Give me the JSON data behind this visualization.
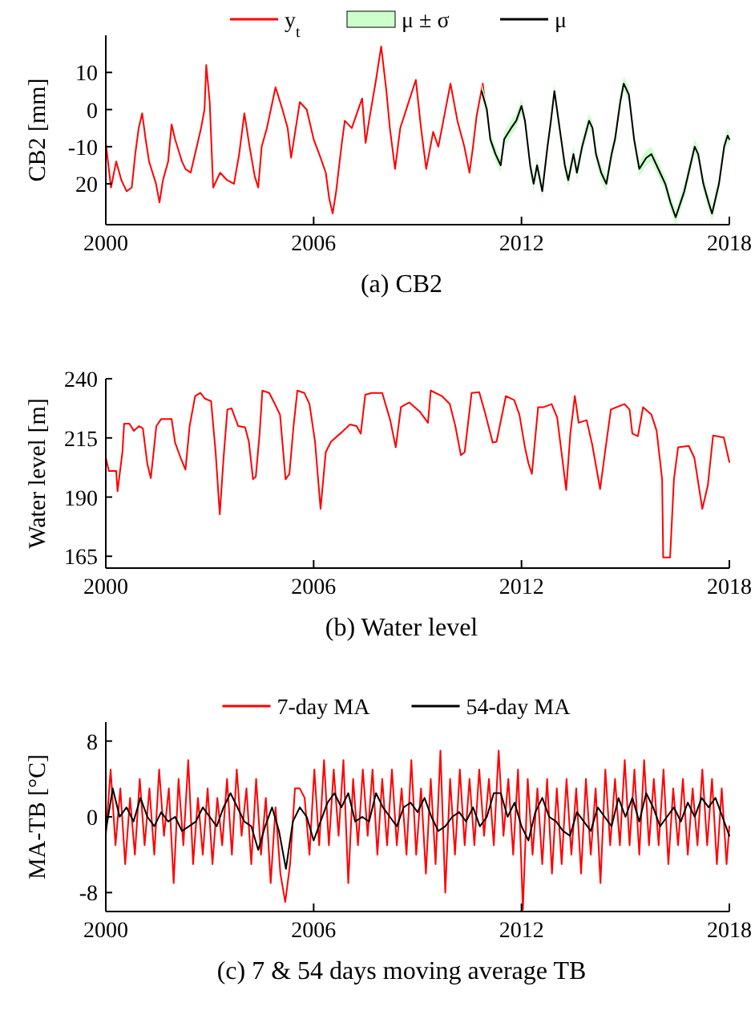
{
  "chart_data": [
    {
      "type": "line",
      "ylabel": "CB2 [mm]",
      "annotations": [
        "μ ± σ",
        "(a) CB2"
      ],
      "xlim": [
        2000,
        2018
      ],
      "xticks": [
        2000,
        2006,
        2012,
        2018
      ],
      "ylim": [
        -31,
        20
      ],
      "yticks": [
        10,
        0,
        {
          "value": -10,
          "label": "-10"
        },
        {
          "value": -20,
          "label": "20"
        }
      ],
      "legend": "top",
      "series": [
        {
          "name": "y$_{t}$",
          "color": "#ff0000",
          "x": [
            2000,
            2000.15,
            2000.3,
            2000.45,
            2000.6,
            2000.75,
            2000.85,
            2000.95,
            2001.05,
            2001.15,
            2001.25,
            2001.35,
            2001.45,
            2001.55,
            2001.65,
            2001.8,
            2001.9,
            2002,
            2002.1,
            2002.2,
            2002.3,
            2002.45,
            2002.6,
            2002.75,
            2002.85,
            2002.9,
            2003,
            2003.1,
            2003.3,
            2003.5,
            2003.7,
            2003.85,
            2004,
            2004.15,
            2004.3,
            2004.4,
            2004.5,
            2004.65,
            2004.9,
            2005.1,
            2005.25,
            2005.35,
            2005.6,
            2005.8,
            2006,
            2006.2,
            2006.35,
            2006.45,
            2006.55,
            2006.65,
            2006.8,
            2006.9,
            2007.1,
            2007.4,
            2007.5,
            2007.6,
            2007.8,
            2007.95,
            2008.1,
            2008.2,
            2008.35,
            2008.5,
            2008.95,
            2009.1,
            2009.25,
            2009.45,
            2009.6,
            2009.95,
            2010.15,
            2010.35,
            2010.5,
            2010.6,
            2010.7,
            2010.88,
            2010.95
          ],
          "values": [
            -9,
            -21,
            -14,
            -19,
            -22,
            -21,
            -12,
            -5,
            -1,
            -8,
            -14,
            -17,
            -20,
            -25,
            -19,
            -14,
            -4,
            -8,
            -11,
            -14,
            -16,
            -17,
            -11,
            -5,
            0,
            12,
            2,
            -21,
            -17,
            -19,
            -20,
            -12,
            -1,
            -10,
            -18,
            -21,
            -10,
            -5,
            6,
            0,
            -5,
            -13,
            2,
            0,
            -8,
            -13,
            -17,
            -24,
            -28,
            -22,
            -10,
            -3,
            -5,
            3,
            -9,
            -3,
            8,
            17,
            5,
            -5,
            -16,
            -5,
            8,
            -5,
            -16,
            -6,
            -10,
            7,
            -3,
            -10,
            -17,
            -10,
            -2,
            7,
            2
          ]
        },
        {
          "name": "μ",
          "color": "#000000",
          "x": [
            2010.85,
            2011,
            2011.1,
            2011.25,
            2011.4,
            2011.5,
            2011.7,
            2011.85,
            2012,
            2012.1,
            2012.25,
            2012.35,
            2012.45,
            2012.6,
            2012.75,
            2012.85,
            2012.95,
            2013.1,
            2013.25,
            2013.35,
            2013.5,
            2013.6,
            2013.75,
            2013.95,
            2014.05,
            2014.15,
            2014.3,
            2014.45,
            2014.6,
            2014.7,
            2014.85,
            2014.95,
            2015.1,
            2015.25,
            2015.4,
            2015.6,
            2015.75,
            2015.85,
            2016,
            2016.15,
            2016.3,
            2016.45,
            2016.7,
            2016.85,
            2017,
            2017.1,
            2017.25,
            2017.4,
            2017.5,
            2017.7,
            2017.85,
            2017.95,
            2018
          ],
          "values": [
            5,
            0,
            -8,
            -12,
            -15,
            -8,
            -5,
            -3,
            1,
            -3,
            -15,
            -20,
            -15,
            -22,
            -10,
            -3,
            5,
            -5,
            -15,
            -19,
            -12,
            -17,
            -10,
            -3,
            -5,
            -12,
            -17,
            -20,
            -12,
            -8,
            2,
            7,
            4,
            -8,
            -16,
            -13,
            -12,
            -14,
            -17,
            -20,
            -25,
            -29,
            -22,
            -16,
            -10,
            -12,
            -20,
            -25,
            -28,
            -20,
            -10,
            -7,
            -8
          ],
          "lower": [
            3,
            -2,
            -10,
            -14,
            -17,
            -10,
            -7,
            -5,
            -1,
            -5,
            -17,
            -22,
            -17,
            -24,
            -12,
            -5,
            3,
            -7,
            -17,
            -21,
            -14,
            -19,
            -12,
            -5,
            -7,
            -14,
            -19,
            -22,
            -14,
            -10,
            0,
            5,
            2,
            -10,
            -18,
            -15,
            -14,
            -16,
            -19,
            -22,
            -27,
            -31,
            -24,
            -18,
            -12,
            -14,
            -22,
            -27,
            -30,
            -22,
            -12,
            -9,
            -10
          ],
          "upper": [
            7,
            2,
            -6,
            -10,
            -13,
            -6,
            -3,
            -1,
            3,
            -1,
            -13,
            -18,
            -13,
            -20,
            -8,
            -1,
            7,
            -3,
            -13,
            -17,
            -10,
            -15,
            -8,
            -1,
            -3,
            -10,
            -15,
            -18,
            -10,
            -6,
            4,
            9,
            6,
            -6,
            -14,
            -11,
            -10,
            -12,
            -15,
            -18,
            -23,
            -27,
            -20,
            -14,
            -8,
            -10,
            -18,
            -23,
            -26,
            -18,
            -8,
            -5,
            -6
          ]
        }
      ]
    },
    {
      "type": "line",
      "ylabel": "Water level [m]",
      "annotations": [
        "(b) Water level"
      ],
      "xlim": [
        2000,
        2018
      ],
      "xticks": [
        2000,
        2006,
        2012,
        2018
      ],
      "ylim": [
        160,
        240
      ],
      "yticks": [
        165,
        190,
        215,
        240
      ],
      "series": [
        {
          "color": "#ff0000",
          "x": [
            2000,
            2000.09,
            2000.3,
            2000.34,
            2000.48,
            2000.53,
            2000.68,
            2000.81,
            2000.96,
            2001.07,
            2001.2,
            2001.3,
            2001.46,
            2001.6,
            2001.9,
            2002,
            2002.16,
            2002.3,
            2002.42,
            2002.58,
            2002.73,
            2002.86,
            2003.04,
            2003.17,
            2003.29,
            2003.4,
            2003.51,
            2003.63,
            2003.82,
            2004.02,
            2004.13,
            2004.25,
            2004.33,
            2004.44,
            2004.52,
            2004.72,
            2004.88,
            2005.03,
            2005.19,
            2005.3,
            2005.42,
            2005.53,
            2005.73,
            2005.88,
            2006.04,
            2006.2,
            2006.35,
            2006.5,
            2006.82,
            2007.05,
            2007.24,
            2007.36,
            2007.49,
            2007.67,
            2007.98,
            2008.21,
            2008.37,
            2008.52,
            2008.76,
            2009.07,
            2009.3,
            2009.38,
            2009.7,
            2009.93,
            2010.09,
            2010.25,
            2010.36,
            2010.56,
            2010.78,
            2010.94,
            2011.17,
            2011.28,
            2011.55,
            2011.79,
            2011.94,
            2012.1,
            2012.2,
            2012.3,
            2012.48,
            2012.64,
            2012.87,
            2013.03,
            2013.29,
            2013.41,
            2013.54,
            2013.65,
            2013.88,
            2014.04,
            2014.27,
            2014.43,
            2014.58,
            2014.97,
            2015.12,
            2015.2,
            2015.36,
            2015.51,
            2015.75,
            2015.9,
            2016.06,
            2016.09,
            2016.29,
            2016.4,
            2016.52,
            2016.83,
            2016.99,
            2017.22,
            2017.38,
            2017.53,
            2017.84,
            2018
          ],
          "values": [
            206.6,
            201,
            201,
            192.5,
            209,
            221,
            221,
            218,
            220,
            219,
            204,
            198,
            220,
            223,
            223,
            213,
            206.6,
            201.6,
            220,
            232.7,
            234,
            231.6,
            230.5,
            209,
            182.7,
            206.6,
            227,
            227.5,
            220,
            219.5,
            213.4,
            197.5,
            198.6,
            216.8,
            235,
            234,
            229.3,
            224.8,
            197.5,
            199.8,
            220,
            235,
            234,
            229.3,
            213.4,
            185,
            209,
            213.4,
            217.5,
            220.7,
            220,
            216.8,
            233.2,
            234,
            234,
            222.5,
            211,
            228,
            230,
            226,
            221.4,
            235,
            232.7,
            229.3,
            220,
            207.7,
            209,
            234,
            234.3,
            226,
            213,
            213.4,
            232.7,
            231,
            224.8,
            211,
            204.3,
            199.8,
            228,
            228,
            229.3,
            223.6,
            193,
            216.8,
            232.7,
            221.4,
            222.5,
            212.3,
            193.4,
            211,
            227,
            229.3,
            227,
            216.8,
            215.7,
            228,
            224.8,
            218,
            197.5,
            164.5,
            164.5,
            197.5,
            211,
            211.6,
            206.6,
            185,
            195,
            216,
            215.2,
            204.8
          ]
        }
      ]
    },
    {
      "type": "line",
      "ylabel": "MA-TB [°C]",
      "annotations": [
        "(c) 7 & 54 days moving average TB"
      ],
      "xlim": [
        2000,
        2018
      ],
      "xticks": [
        2000,
        2006,
        2012,
        2018
      ],
      "ylim": [
        -10,
        10
      ],
      "yticks": [
        8,
        0,
        -8
      ],
      "legend": "top",
      "series": [
        {
          "name": "7-day MA",
          "color": "#ff0000",
          "x": [
            2000,
            2000.14,
            2000.28,
            2000.42,
            2000.56,
            2000.7,
            2000.84,
            2000.98,
            2001.12,
            2001.26,
            2001.4,
            2001.54,
            2001.68,
            2001.82,
            2001.96,
            2002.1,
            2002.24,
            2002.38,
            2002.52,
            2002.66,
            2002.8,
            2002.94,
            2003.08,
            2003.22,
            2003.36,
            2003.5,
            2003.64,
            2003.78,
            2003.92,
            2004.06,
            2004.2,
            2004.34,
            2004.48,
            2004.62,
            2004.76,
            2004.9,
            2005.04,
            2005.18,
            2005.32,
            2005.46,
            2005.6,
            2005.74,
            2005.88,
            2006.02,
            2006.16,
            2006.3,
            2006.44,
            2006.58,
            2006.72,
            2006.86,
            2007,
            2007.14,
            2007.28,
            2007.42,
            2007.56,
            2007.7,
            2007.84,
            2007.98,
            2008.12,
            2008.26,
            2008.4,
            2008.54,
            2008.68,
            2008.82,
            2008.96,
            2009.1,
            2009.24,
            2009.38,
            2009.52,
            2009.66,
            2009.8,
            2009.94,
            2010.08,
            2010.22,
            2010.36,
            2010.5,
            2010.64,
            2010.78,
            2010.92,
            2011.06,
            2011.2,
            2011.34,
            2011.48,
            2011.62,
            2011.76,
            2011.9,
            2012.04,
            2012.18,
            2012.32,
            2012.46,
            2012.6,
            2012.74,
            2012.88,
            2013.02,
            2013.16,
            2013.3,
            2013.44,
            2013.58,
            2013.72,
            2013.86,
            2014,
            2014.14,
            2014.28,
            2014.42,
            2014.56,
            2014.7,
            2014.84,
            2014.98,
            2015.12,
            2015.26,
            2015.4,
            2015.54,
            2015.68,
            2015.82,
            2015.96,
            2016.1,
            2016.24,
            2016.38,
            2016.52,
            2016.66,
            2016.8,
            2016.94,
            2017.08,
            2017.22,
            2017.36,
            2017.5,
            2017.64,
            2017.78,
            2017.92,
            2018
          ],
          "values": [
            -2,
            5,
            -3,
            3,
            -5,
            2,
            -4,
            4,
            -3,
            3,
            -4,
            5,
            -2,
            3,
            -7,
            4,
            -3,
            6,
            -5,
            2,
            -4,
            3,
            -5,
            2,
            -3,
            4,
            -4,
            5,
            -2,
            3,
            -5,
            4,
            -4,
            2,
            -7,
            1,
            -6,
            -9,
            -5,
            3,
            3,
            2,
            -4,
            5,
            -3,
            6,
            -3,
            5,
            -2,
            6,
            -7,
            4,
            -3,
            5,
            -2,
            5,
            -4,
            4,
            -3,
            5,
            -3,
            3,
            -4,
            6,
            -4,
            3,
            -6,
            4,
            -5,
            7,
            -8,
            4,
            -4,
            5,
            -3,
            4,
            -3,
            5,
            -2,
            4,
            -3,
            7,
            -2,
            4,
            -4,
            5,
            -9.8,
            4,
            -4,
            3,
            -5,
            4,
            -6,
            3,
            -5,
            4,
            -4,
            3,
            -6,
            4,
            -4,
            3,
            -7,
            5,
            -3,
            4,
            -3,
            6,
            -3,
            5,
            -4,
            6,
            -3,
            4,
            -3,
            5,
            -5,
            3,
            -3,
            4,
            -4,
            3,
            -3,
            5,
            -3,
            4,
            -5,
            3,
            -5,
            -1
          ]
        },
        {
          "name": "54-day MA",
          "color": "#000000",
          "x": [
            2000,
            2000.2,
            2000.4,
            2000.6,
            2000.8,
            2001,
            2001.2,
            2001.4,
            2001.6,
            2001.8,
            2002,
            2002.2,
            2002.4,
            2002.6,
            2002.8,
            2003,
            2003.2,
            2003.4,
            2003.6,
            2003.8,
            2004,
            2004.2,
            2004.4,
            2004.6,
            2004.8,
            2005,
            2005.2,
            2005.4,
            2005.6,
            2005.8,
            2006,
            2006.2,
            2006.4,
            2006.6,
            2006.8,
            2007,
            2007.2,
            2007.4,
            2007.6,
            2007.8,
            2008,
            2008.2,
            2008.4,
            2008.6,
            2008.8,
            2009,
            2009.2,
            2009.4,
            2009.6,
            2009.8,
            2010,
            2010.2,
            2010.4,
            2010.6,
            2010.8,
            2011,
            2011.2,
            2011.4,
            2011.6,
            2011.8,
            2012,
            2012.2,
            2012.4,
            2012.6,
            2012.8,
            2013,
            2013.2,
            2013.4,
            2013.6,
            2013.8,
            2014,
            2014.2,
            2014.4,
            2014.6,
            2014.8,
            2015,
            2015.2,
            2015.4,
            2015.6,
            2015.8,
            2016,
            2016.2,
            2016.4,
            2016.6,
            2016.8,
            2017,
            2017.2,
            2017.4,
            2017.6,
            2017.8,
            2018
          ],
          "values": [
            -1.5,
            3,
            0,
            1,
            -0.5,
            2,
            0,
            -1,
            0.5,
            -0.5,
            0,
            -1.5,
            -1,
            -0.5,
            1,
            0,
            -1,
            1,
            2.5,
            1,
            -0.5,
            -1,
            -3.5,
            -1,
            1,
            -1.5,
            -5.5,
            -0.5,
            1,
            0,
            -2.5,
            -0.5,
            1.5,
            2.5,
            1,
            2.5,
            -0.5,
            0,
            -0.5,
            2.5,
            1,
            0,
            -1,
            1,
            1.5,
            0.5,
            2,
            0,
            -1.5,
            -1,
            0,
            0.5,
            -0.5,
            1,
            -1,
            0,
            2.5,
            2.5,
            0,
            1.5,
            -1,
            -2.5,
            0.5,
            2,
            0,
            -0.5,
            -1.5,
            -2,
            0.5,
            -0.5,
            -1.5,
            1,
            0,
            -1,
            2,
            0,
            2,
            -0.5,
            2.5,
            1,
            -1,
            0,
            1,
            -0.5,
            1.5,
            0,
            2,
            1,
            2,
            0,
            -2
          ]
        }
      ]
    }
  ]
}
